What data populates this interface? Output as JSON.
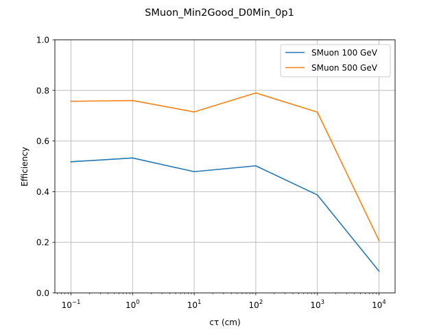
{
  "chart_data": {
    "type": "line",
    "title": "SMuon_Min2Good_D0Min_0p1",
    "xlabel": "cτ (cm)",
    "ylabel": "Efficiency",
    "x_scale": "log",
    "x": [
      0.1,
      1,
      10,
      100,
      1000,
      10000
    ],
    "x_tick_labels": [
      {
        "base": "10",
        "exp": "−1"
      },
      {
        "base": "10",
        "exp": "0"
      },
      {
        "base": "10",
        "exp": "1"
      },
      {
        "base": "10",
        "exp": "2"
      },
      {
        "base": "10",
        "exp": "3"
      },
      {
        "base": "10",
        "exp": "4"
      }
    ],
    "y_ticks": [
      0.0,
      0.2,
      0.4,
      0.6,
      0.8,
      1.0
    ],
    "y_tick_labels": [
      "0.0",
      "0.2",
      "0.4",
      "0.6",
      "0.8",
      "1.0"
    ],
    "ylim": [
      0,
      1.0
    ],
    "grid": true,
    "legend_position": "top-right",
    "series": [
      {
        "name": "SMuon 100 GeV",
        "color": "#1f77b4",
        "values": [
          0.518,
          0.533,
          0.479,
          0.502,
          0.387,
          0.086
        ]
      },
      {
        "name": "SMuon 500 GeV",
        "color": "#ff7f0e",
        "values": [
          0.757,
          0.76,
          0.715,
          0.79,
          0.714,
          0.207
        ]
      }
    ]
  }
}
